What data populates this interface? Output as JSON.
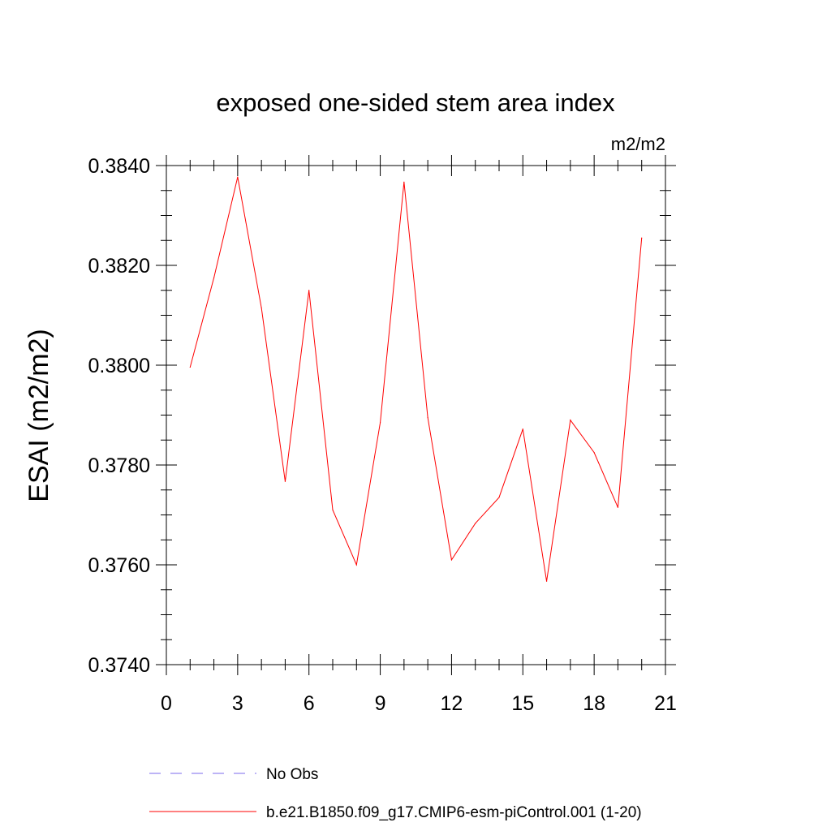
{
  "chart_data": {
    "type": "line",
    "title": "exposed one-sided stem area index",
    "units": "m2/m2",
    "ylabel": "ESAI  (m2/m2)",
    "xlabel": "",
    "xlim": [
      0,
      21
    ],
    "ylim": [
      0.374,
      0.384
    ],
    "x_ticks": [
      "0",
      "3",
      "6",
      "9",
      "12",
      "15",
      "18",
      "21"
    ],
    "y_ticks": [
      "0.3740",
      "0.3760",
      "0.3780",
      "0.3800",
      "0.3820",
      "0.3840"
    ],
    "grid": false,
    "legend_position": "bottom",
    "series": [
      {
        "name": "No Obs",
        "color": "#7b68ee",
        "dash": "dashed",
        "x": [],
        "y": []
      },
      {
        "name": "b.e21.B1850.f09_g17.CMIP6-esm-piControl.001 (1-20)",
        "color": "#ff0000",
        "dash": "solid",
        "x": [
          1,
          2,
          3,
          4,
          5,
          6,
          7,
          8,
          9,
          10,
          11,
          12,
          13,
          14,
          15,
          16,
          17,
          18,
          19,
          20
        ],
        "y": [
          0.37996,
          0.38175,
          0.38377,
          0.38115,
          0.37767,
          0.3815,
          0.3771,
          0.376,
          0.37885,
          0.38367,
          0.37895,
          0.3761,
          0.37683,
          0.37735,
          0.37872,
          0.37567,
          0.3789,
          0.37825,
          0.37715,
          0.38255
        ]
      }
    ]
  }
}
